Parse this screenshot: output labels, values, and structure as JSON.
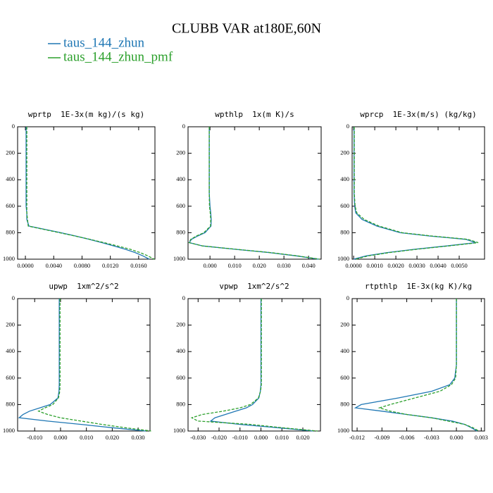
{
  "title": "CLUBB VAR at180E,60N",
  "series": [
    {
      "name": "taus_144_zhun",
      "color": "#1f77b4",
      "linestyle": "solid"
    },
    {
      "name": "taus_144_zhun_pmf",
      "color": "#2ca02c",
      "linestyle": "dashed"
    }
  ],
  "chart_data": [
    {
      "type": "line",
      "title": "wprtp  1E-3x(m kg)/(s kg)",
      "y": [
        0,
        100,
        200,
        300,
        400,
        500,
        600,
        650,
        700,
        750,
        800,
        825,
        850,
        875,
        900,
        925,
        950,
        975,
        1000
      ],
      "ylim": [
        0,
        1000
      ],
      "y_inverted": true,
      "yticks": [
        0,
        200,
        400,
        600,
        800,
        1000
      ],
      "xlim": [
        -0.0011,
        0.0183
      ],
      "xticks": [
        {
          "value": 0,
          "label": "0.0000"
        },
        {
          "value": 0.004,
          "label": "0.0040"
        },
        {
          "value": 0.008,
          "label": "0.0080"
        },
        {
          "value": 0.012,
          "label": "0.0120"
        },
        {
          "value": 0.016,
          "label": "0.0160"
        }
      ],
      "series": [
        {
          "values": [
            0.0001,
            0.0001,
            0.0001,
            0.0001,
            0.0001,
            0.0001,
            0.0001,
            0.0002,
            0.0002,
            0.0005,
            0.005,
            0.0071,
            0.009,
            0.0108,
            0.0125,
            0.0141,
            0.0155,
            0.0166,
            0.0175
          ]
        },
        {
          "values": [
            0.0002,
            0.0002,
            0.0002,
            0.0002,
            0.0002,
            0.0002,
            0.0002,
            0.0002,
            0.0003,
            0.0004,
            0.0048,
            0.007,
            0.0091,
            0.0111,
            0.013,
            0.0148,
            0.0162,
            0.0173,
            0.0182
          ]
        }
      ]
    },
    {
      "type": "line",
      "title": "wpthlp  1x(m K)/s",
      "y": [
        0,
        100,
        200,
        300,
        400,
        500,
        600,
        650,
        700,
        750,
        800,
        825,
        850,
        875,
        900,
        925,
        950,
        975,
        1000
      ],
      "ylim": [
        0,
        1000
      ],
      "y_inverted": true,
      "yticks": [
        0,
        200,
        400,
        600,
        800,
        1000
      ],
      "xlim": [
        -0.0089,
        0.0451
      ],
      "xticks": [
        {
          "value": 0,
          "label": "0.000"
        },
        {
          "value": 0.01,
          "label": "0.010"
        },
        {
          "value": 0.02,
          "label": "0.020"
        },
        {
          "value": 0.03,
          "label": "0.030"
        },
        {
          "value": 0.04,
          "label": "0.040"
        }
      ],
      "series": [
        {
          "values": [
            -0.0003,
            -0.0003,
            -0.0003,
            -0.0003,
            -0.0003,
            -0.0003,
            0,
            0.0003,
            0.0005,
            0.0004,
            -0.002,
            -0.005,
            -0.0075,
            -0.0084,
            -0.003,
            0.01,
            0.024,
            0.035,
            0.044
          ]
        },
        {
          "values": [
            -0.0003,
            -0.0003,
            -0.0003,
            -0.0003,
            -0.0003,
            -0.0003,
            -0.0002,
            0.0001,
            0.0003,
            0.0002,
            -0.0025,
            -0.0055,
            -0.0078,
            -0.0085,
            -0.003,
            0.0105,
            0.0245,
            0.0355,
            0.0445
          ]
        }
      ]
    },
    {
      "type": "line",
      "title": "wprcp  1E-3x(m/s) (kg/kg)",
      "y": [
        0,
        100,
        200,
        300,
        400,
        500,
        600,
        650,
        700,
        750,
        800,
        825,
        850,
        875,
        900,
        925,
        950,
        975,
        1000
      ],
      "ylim": [
        0,
        1000
      ],
      "y_inverted": true,
      "yticks": [
        0,
        200,
        400,
        600,
        800,
        1000
      ],
      "xlim": [
        -7e-05,
        0.0062
      ],
      "xticks": [
        {
          "value": 0,
          "label": "0.0000"
        },
        {
          "value": 0.001,
          "label": "0.0010"
        },
        {
          "value": 0.002,
          "label": "0.0020"
        },
        {
          "value": 0.003,
          "label": "0.0030"
        },
        {
          "value": 0.004,
          "label": "0.0040"
        },
        {
          "value": 0.005,
          "label": "0.0050"
        }
      ],
      "series": [
        {
          "values": [
            2e-05,
            2e-05,
            2e-05,
            2e-05,
            2e-05,
            2e-05,
            5e-05,
            0.0001,
            0.0004,
            0.0011,
            0.0022,
            0.0036,
            0.0053,
            0.0058,
            0.0044,
            0.0029,
            0.0016,
            0.0006,
            0
          ]
        },
        {
          "values": [
            3e-05,
            3e-05,
            3e-05,
            3e-05,
            3e-05,
            3e-05,
            7e-05,
            0.00015,
            0.0005,
            0.0012,
            0.0023,
            0.0037,
            0.0054,
            0.0059,
            0.0045,
            0.003,
            0.0017,
            0.0007,
            0.0001
          ]
        }
      ]
    },
    {
      "type": "line",
      "title": "upwp  1xm^2/s^2",
      "y": [
        0,
        100,
        200,
        300,
        400,
        500,
        600,
        650,
        700,
        750,
        800,
        825,
        850,
        875,
        900,
        925,
        950,
        975,
        1000
      ],
      "ylim": [
        0,
        1000
      ],
      "y_inverted": true,
      "yticks": [
        0,
        200,
        400,
        600,
        800,
        1000
      ],
      "xlim": [
        -0.0166,
        0.0346
      ],
      "xticks": [
        {
          "value": -0.01,
          "label": "-0.010"
        },
        {
          "value": 0,
          "label": "0.000"
        },
        {
          "value": 0.01,
          "label": "0.010"
        },
        {
          "value": 0.02,
          "label": "0.020"
        },
        {
          "value": 0.03,
          "label": "0.030"
        }
      ],
      "series": [
        {
          "values": [
            -0.0005,
            -0.0005,
            -0.0005,
            -0.0005,
            -0.0005,
            -0.0005,
            -0.0005,
            -0.0005,
            -0.0006,
            -0.001,
            -0.004,
            -0.008,
            -0.012,
            -0.0145,
            -0.016,
            -0.005,
            0.008,
            0.02,
            0.033
          ]
        },
        {
          "values": [
            -0.0002,
            -0.0002,
            -0.0002,
            -0.0002,
            -0.0002,
            -0.0002,
            -0.0002,
            -0.0002,
            -0.0003,
            -0.0008,
            -0.003,
            -0.006,
            -0.0085,
            -0.005,
            0,
            0.008,
            0.016,
            0.025,
            0.035
          ]
        }
      ]
    },
    {
      "type": "line",
      "title": "vpwp  1xm^2/s^2",
      "y": [
        0,
        100,
        200,
        300,
        400,
        500,
        600,
        650,
        700,
        750,
        800,
        825,
        850,
        875,
        900,
        925,
        950,
        975,
        1000
      ],
      "ylim": [
        0,
        1000
      ],
      "y_inverted": true,
      "yticks": [
        0,
        200,
        400,
        600,
        800,
        1000
      ],
      "xlim": [
        -0.0348,
        0.0284
      ],
      "xticks": [
        {
          "value": -0.03,
          "label": "-0.030"
        },
        {
          "value": -0.02,
          "label": "-0.020"
        },
        {
          "value": -0.01,
          "label": "-0.010"
        },
        {
          "value": 0,
          "label": "0.000"
        },
        {
          "value": 0.01,
          "label": "0.010"
        },
        {
          "value": 0.02,
          "label": "0.020"
        }
      ],
      "series": [
        {
          "values": [
            0,
            0,
            0,
            0,
            0,
            0,
            0,
            0,
            -0.0003,
            -0.001,
            -0.004,
            -0.007,
            -0.012,
            -0.017,
            -0.022,
            -0.024,
            -0.01,
            0.008,
            0.025
          ]
        },
        {
          "values": [
            0.0002,
            0.0002,
            0.0002,
            0.0002,
            0.0002,
            0.0002,
            0.0002,
            0.0002,
            -0.0002,
            -0.0012,
            -0.005,
            -0.01,
            -0.018,
            -0.028,
            -0.033,
            -0.03,
            -0.005,
            0.01,
            0.027
          ]
        }
      ]
    },
    {
      "type": "line",
      "title": "rtpthlp  1E-3x(kg K)/kg",
      "y": [
        0,
        100,
        200,
        300,
        400,
        500,
        600,
        650,
        700,
        750,
        800,
        825,
        850,
        875,
        900,
        925,
        950,
        975,
        1000
      ],
      "ylim": [
        0,
        1000
      ],
      "y_inverted": true,
      "yticks": [
        0,
        200,
        400,
        600,
        800,
        1000
      ],
      "xlim": [
        -0.0126,
        0.0034
      ],
      "xticks": [
        {
          "value": -0.012,
          "label": "-0.012"
        },
        {
          "value": -0.009,
          "label": "-0.009"
        },
        {
          "value": -0.006,
          "label": "-0.006"
        },
        {
          "value": -0.003,
          "label": "-0.003"
        },
        {
          "value": 0,
          "label": "0.000"
        },
        {
          "value": 0.003,
          "label": "0.003"
        }
      ],
      "series": [
        {
          "values": [
            0,
            0,
            0,
            0,
            0,
            0,
            -0.0002,
            -0.0008,
            -0.003,
            -0.007,
            -0.0115,
            -0.0122,
            -0.009,
            -0.006,
            -0.003,
            -0.0005,
            0.001,
            0.0018,
            0.0025
          ]
        },
        {
          "values": [
            0,
            0,
            0,
            0,
            0,
            0,
            -0.0001,
            -0.0006,
            -0.002,
            -0.005,
            -0.008,
            -0.0093,
            -0.008,
            -0.006,
            -0.003,
            -0.001,
            0.001,
            0.002,
            0.0027
          ]
        }
      ]
    }
  ]
}
